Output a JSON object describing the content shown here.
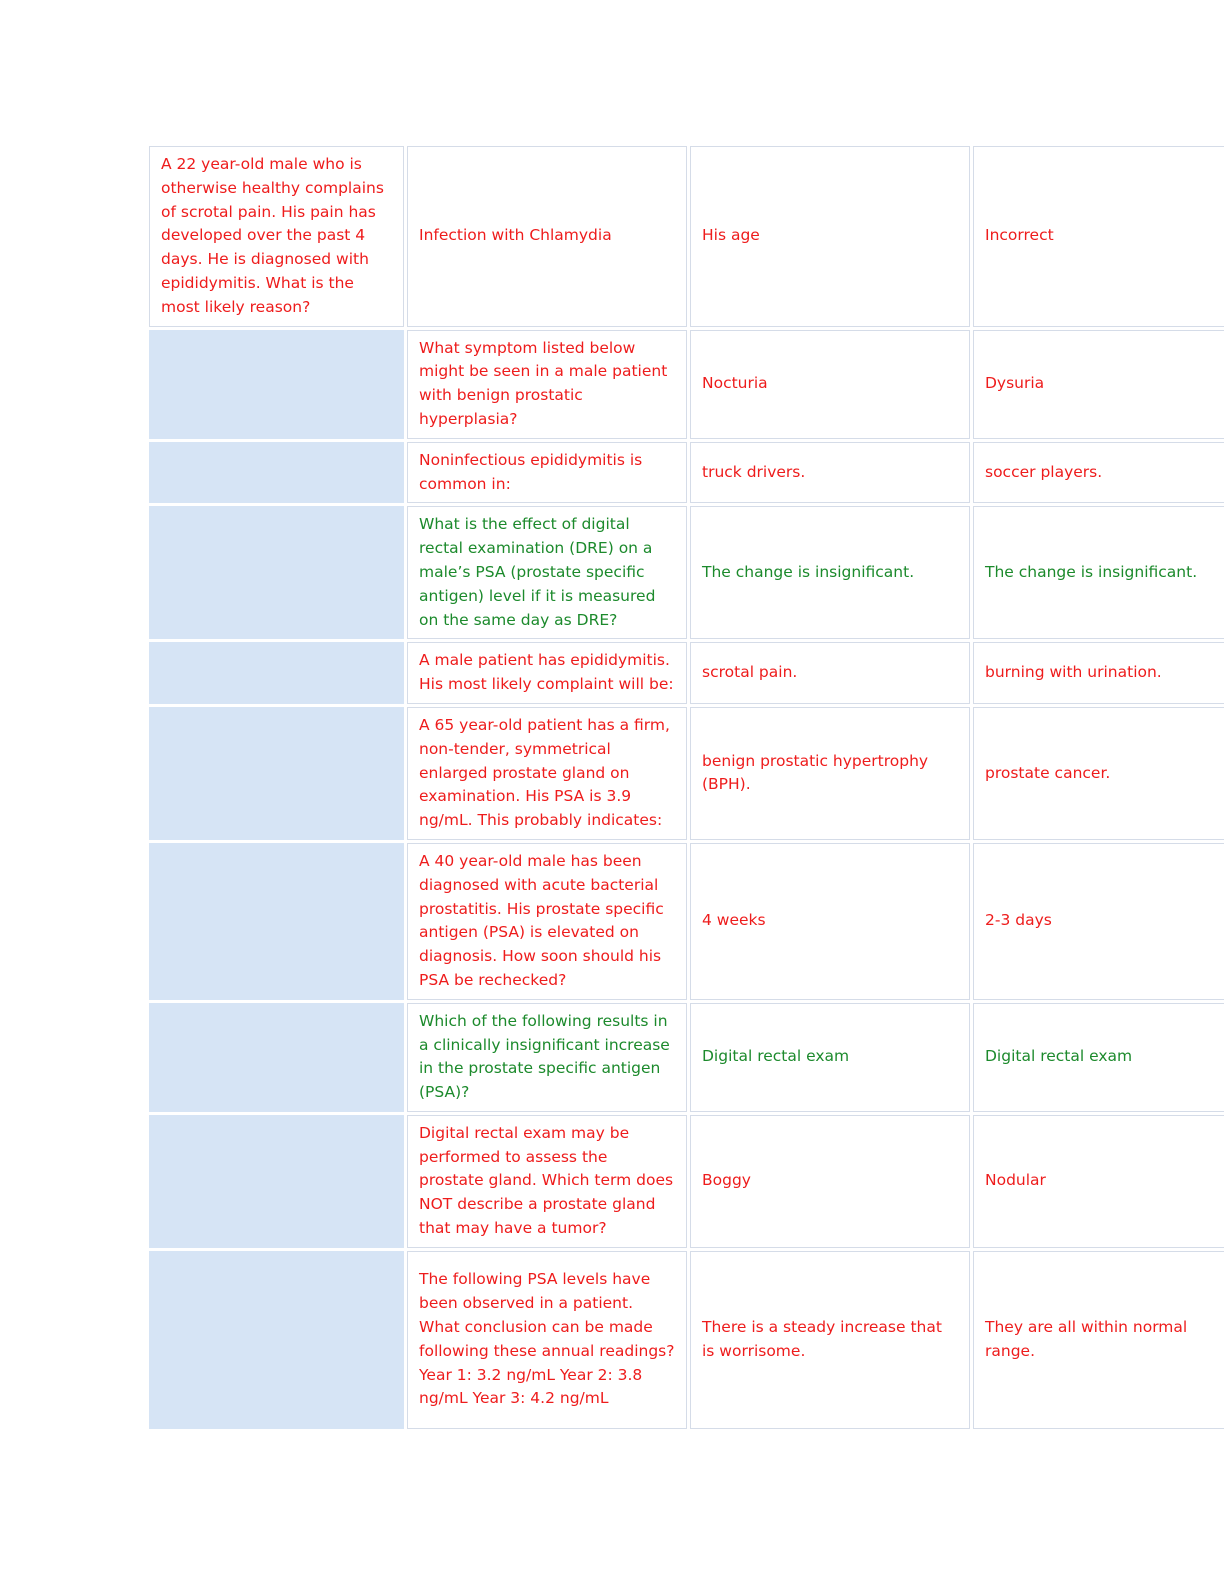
{
  "rows": [
    {
      "context": "A 22 year-old male who is otherwise healthy complains of scrotal pain. His pain has developed over the past 4 days. He is diagnosed with epididymitis. What is the most likely reason?",
      "question": "Infection with Chlamydia",
      "answer": "His age",
      "correct": "Incorrect",
      "color": "#ee1c1c"
    },
    {
      "context": "",
      "question": "What symptom listed below might be seen in a male patient with benign prostatic hyperplasia?",
      "answer": "Nocturia",
      "correct": "Dysuria",
      "color": "#ee1c1c"
    },
    {
      "context": "",
      "question": "Noninfectious epididymitis is common in:",
      "answer": "truck drivers.",
      "correct": "soccer players.",
      "color": "#ee1c1c"
    },
    {
      "context": "",
      "question": "What is the effect of digital rectal examination (DRE) on a male’s PSA (prostate specific antigen) level if it is measured on the same day as DRE?",
      "answer": "The change is insignificant.",
      "correct": "The change is insignificant.",
      "color": "#1c8a2c"
    },
    {
      "context": "",
      "question": "A male patient has epididymitis. His most likely complaint will be:",
      "answer": "scrotal pain.",
      "correct": "burning with urination.",
      "color": "#ee1c1c"
    },
    {
      "context": "",
      "question": "A 65 year-old patient has a firm, non-tender, symmetrical enlarged prostate gland on examination. His PSA is 3.9 ng/mL. This probably indicates:",
      "answer": "benign prostatic hypertrophy (BPH).",
      "correct": "prostate cancer.",
      "color": "#ee1c1c"
    },
    {
      "context": "",
      "question": "A 40 year-old male has been diagnosed with acute bacterial prostatitis. His prostate specific antigen (PSA) is elevated on diagnosis. How soon should his PSA be rechecked?",
      "answer": "4 weeks",
      "correct": "2-3 days",
      "color": "#ee1c1c"
    },
    {
      "context": "",
      "question": "Which of the following results in a clinically insignificant increase in the prostate specific antigen (PSA)?",
      "answer": "Digital rectal exam",
      "correct": "Digital rectal exam",
      "color": "#1c8a2c"
    },
    {
      "context": "",
      "question": "Digital rectal exam may be performed to assess the prostate gland. Which term does NOT describe a prostate gland that may have a tumor?",
      "answer": "Boggy",
      "correct": "Nodular",
      "color": "#ee1c1c"
    },
    {
      "context": "",
      "question": "The following PSA levels have been observed in a patient. What conclusion can be made following these annual readings? Year 1: 3.2 ng/mL Year 2: 3.8 ng/mL Year 3: 4.2 ng/mL",
      "answer": "There is a steady increase that is worrisome.",
      "correct": "They are all within normal range.",
      "color": "#ee1c1c"
    }
  ]
}
